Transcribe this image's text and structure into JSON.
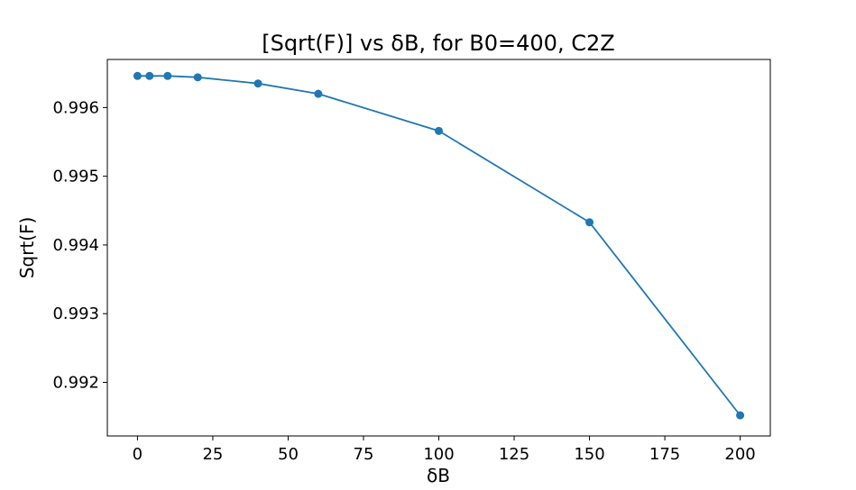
{
  "chart_data": {
    "type": "line",
    "title": "[Sqrt(F)] vs δB, for B0=400, C2Z",
    "xlabel": "δB",
    "ylabel": "Sqrt(F)",
    "xlim": [
      -10,
      210
    ],
    "ylim": [
      0.99122,
      0.9967
    ],
    "xticks": [
      0,
      25,
      50,
      75,
      100,
      125,
      150,
      175,
      200
    ],
    "xtick_labels": [
      "0",
      "25",
      "50",
      "75",
      "100",
      "125",
      "150",
      "175",
      "200"
    ],
    "yticks": [
      0.992,
      0.993,
      0.994,
      0.995,
      0.996
    ],
    "ytick_labels": [
      "0.992",
      "0.993",
      "0.994",
      "0.995",
      "0.996"
    ],
    "grid": false,
    "legend": false,
    "series": [
      {
        "color": "#1f77b4",
        "marker": "circle",
        "x": [
          0,
          4,
          10,
          20,
          40,
          60,
          100,
          150,
          200
        ],
        "y": [
          0.99646,
          0.99646,
          0.99646,
          0.99644,
          0.99635,
          0.9962,
          0.99566,
          0.99433,
          0.99152
        ]
      }
    ]
  }
}
